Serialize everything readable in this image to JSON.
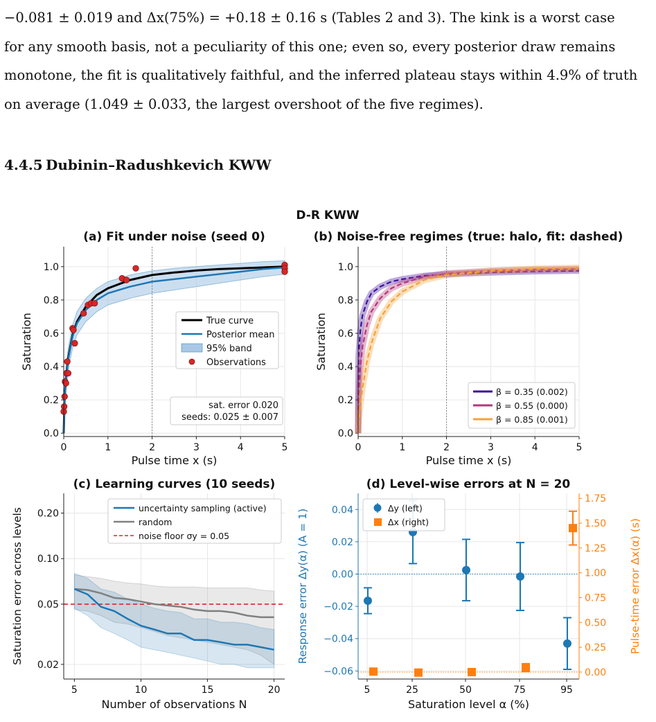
{
  "paragraph": {
    "lines": [
      "−0.081 ± 0.019 and Δx(75%) = +0.18 ± 0.16 s (Tables 2 and 3). The kink is a worst case",
      "for any smooth basis, not a peculiarity of this one; even so, every posterior draw remains",
      "monotone, the fit is qualitatively faithful, and the inferred plateau stays within 4.9% of truth",
      "on average (1.049 ± 0.033, the largest overshoot of the five regimes)."
    ]
  },
  "section": {
    "number": "4.4.5",
    "title": "Dubinin–Radushkevich KWW"
  },
  "figure": {
    "suptitle": "D-R KWW",
    "colors": {
      "true": "#000000",
      "posterior": "#1f77b4",
      "band": "#a9c8e6",
      "obs": "#d62728",
      "beta1": "#3f0f9c",
      "beta2": "#b5367a",
      "beta3": "#f5a23a",
      "active": "#1f77b4",
      "random": "#808080",
      "floor": "#d62728",
      "dy": "#1f77b4",
      "dx": "#ff7f0e"
    },
    "panel_a": {
      "title": "(a) Fit under noise (seed 0)",
      "xlabel": "Pulse time x (s)",
      "ylabel": "Saturation",
      "xticks": [
        "0",
        "1",
        "2",
        "3",
        "4",
        "5"
      ],
      "yticks": [
        "0.0",
        "0.2",
        "0.4",
        "0.6",
        "0.8",
        "1.0"
      ],
      "legend": [
        "True curve",
        "Posterior mean",
        "95% band",
        "Observations"
      ],
      "annotation": [
        "sat. error 0.020",
        "seeds: 0.025 ± 0.007"
      ]
    },
    "panel_b": {
      "title": "(b) Noise-free regimes (true: halo, fit: dashed)",
      "xlabel": "Pulse time x (s)",
      "ylabel": "Saturation",
      "xticks": [
        "0",
        "1",
        "2",
        "3",
        "4",
        "5"
      ],
      "yticks": [
        "0.0",
        "0.2",
        "0.4",
        "0.6",
        "0.8",
        "1.0"
      ],
      "legend": [
        "β = 0.35 (0.002)",
        "β = 0.55 (0.000)",
        "β = 0.85 (0.001)"
      ]
    },
    "panel_c": {
      "title": "(c) Learning curves (10 seeds)",
      "xlabel": "Number of observations N",
      "ylabel": "Saturation error across levels",
      "xticks": [
        "5",
        "10",
        "15",
        "20"
      ],
      "yticks": [
        "0.20",
        "0.10",
        "0.05",
        "0.02"
      ],
      "legend": [
        "uncertainty sampling (active)",
        "random",
        "noise floor σy = 0.05"
      ]
    },
    "panel_d": {
      "title": "(d) Level-wise errors at N = 20",
      "xlabel": "Saturation level α (%)",
      "ylabel_left": "Response error Δy(α)  (A = 1)",
      "ylabel_right": "Pulse-time error Δx(α)  (s)",
      "xticks": [
        "5",
        "25",
        "50",
        "75",
        "95"
      ],
      "yticks_left": [
        "0.04",
        "0.02",
        "0.00",
        "−0.02",
        "−0.04",
        "−0.06"
      ],
      "yticks_right": [
        "1.75",
        "1.50",
        "1.25",
        "1.00",
        "0.75",
        "0.50",
        "0.25",
        "0.00"
      ],
      "legend": [
        "Δy (left)",
        "Δx (right)"
      ]
    }
  },
  "chart_data": [
    {
      "type": "line",
      "title": "(a) Fit under noise (seed 0)",
      "xlabel": "Pulse time x (s)",
      "ylabel": "Saturation",
      "xlim": [
        0,
        5
      ],
      "ylim": [
        -0.02,
        1.12
      ],
      "series": [
        {
          "name": "True curve",
          "x": [
            0,
            0.02,
            0.05,
            0.1,
            0.2,
            0.3,
            0.5,
            0.75,
            1,
            1.5,
            2,
            2.5,
            3,
            3.5,
            4,
            4.5,
            5
          ],
          "y": [
            0,
            0.21,
            0.33,
            0.45,
            0.59,
            0.67,
            0.76,
            0.83,
            0.87,
            0.92,
            0.95,
            0.965,
            0.977,
            0.985,
            0.99,
            0.995,
            1.0
          ]
        },
        {
          "name": "Posterior mean",
          "x": [
            0,
            0.02,
            0.05,
            0.1,
            0.2,
            0.3,
            0.5,
            0.75,
            1,
            1.5,
            2,
            2.5,
            3,
            3.5,
            4,
            4.5,
            5
          ],
          "y": [
            0,
            0.2,
            0.32,
            0.44,
            0.58,
            0.66,
            0.74,
            0.8,
            0.84,
            0.88,
            0.91,
            0.925,
            0.94,
            0.955,
            0.97,
            0.985,
            0.995
          ]
        },
        {
          "name": "95% band",
          "x": [
            0,
            0.02,
            0.05,
            0.1,
            0.2,
            0.3,
            0.5,
            0.75,
            1,
            1.5,
            2,
            2.5,
            3,
            3.5,
            4,
            4.5,
            5
          ],
          "low": [
            0,
            0.14,
            0.26,
            0.38,
            0.51,
            0.59,
            0.67,
            0.73,
            0.77,
            0.81,
            0.84,
            0.86,
            0.88,
            0.9,
            0.92,
            0.94,
            0.955
          ],
          "high": [
            0.02,
            0.26,
            0.39,
            0.51,
            0.65,
            0.73,
            0.81,
            0.87,
            0.91,
            0.95,
            0.975,
            0.99,
            1.0,
            1.01,
            1.02,
            1.03,
            1.035
          ]
        },
        {
          "name": "Observations",
          "x": [
            0,
            0.01,
            0.02,
            0.03,
            0.05,
            0.06,
            0.08,
            0.1,
            0.2,
            0.22,
            0.25,
            0.45,
            0.55,
            0.62,
            0.7,
            1.32,
            1.42,
            1.63,
            5,
            5,
            5
          ],
          "y": [
            0.13,
            0.16,
            0.22,
            0.31,
            0.3,
            0.36,
            0.43,
            0.36,
            0.63,
            0.62,
            0.54,
            0.72,
            0.77,
            0.78,
            0.78,
            0.93,
            0.92,
            0.99,
            1.01,
            0.99,
            0.97
          ]
        }
      ],
      "vline": 2
    },
    {
      "type": "line",
      "title": "(b) Noise-free regimes (true: halo, fit: dashed)",
      "xlabel": "Pulse time x (s)",
      "ylabel": "Saturation",
      "xlim": [
        0,
        5
      ],
      "ylim": [
        -0.02,
        1.12
      ],
      "series": [
        {
          "name": "β = 0.35 (0.002)",
          "x": [
            0,
            0.01,
            0.05,
            0.1,
            0.2,
            0.3,
            0.5,
            0.75,
            1,
            1.5,
            2,
            3,
            4,
            5
          ],
          "y": [
            0,
            0.46,
            0.62,
            0.71,
            0.79,
            0.84,
            0.88,
            0.91,
            0.925,
            0.945,
            0.955,
            0.965,
            0.972,
            0.976
          ]
        },
        {
          "name": "β = 0.55 (0.000)",
          "x": [
            0,
            0.01,
            0.05,
            0.1,
            0.2,
            0.3,
            0.5,
            0.75,
            1,
            1.5,
            2,
            3,
            4,
            5
          ],
          "y": [
            0,
            0.22,
            0.4,
            0.52,
            0.65,
            0.73,
            0.81,
            0.87,
            0.9,
            0.94,
            0.96,
            0.975,
            0.982,
            0.986
          ]
        },
        {
          "name": "β = 0.85 (0.001)",
          "x": [
            0,
            0.01,
            0.05,
            0.1,
            0.2,
            0.3,
            0.5,
            0.75,
            1,
            1.5,
            2,
            3,
            4,
            5
          ],
          "y": [
            0,
            0.06,
            0.17,
            0.27,
            0.43,
            0.54,
            0.69,
            0.79,
            0.85,
            0.92,
            0.95,
            0.975,
            0.988,
            0.994
          ]
        }
      ],
      "vline": 2
    },
    {
      "type": "line",
      "title": "(c) Learning curves (10 seeds)",
      "xlabel": "Number of observations N",
      "ylabel": "Saturation error across levels",
      "xlim": [
        4.2,
        20.8
      ],
      "ylim": [
        0.016,
        0.27
      ],
      "yscale": "log",
      "series": [
        {
          "name": "uncertainty sampling (active)",
          "x": [
            5,
            6,
            7,
            8,
            9,
            10,
            11,
            12,
            13,
            14,
            15,
            16,
            17,
            18,
            19,
            20
          ],
          "y": [
            0.063,
            0.058,
            0.048,
            0.045,
            0.04,
            0.036,
            0.034,
            0.032,
            0.032,
            0.029,
            0.029,
            0.028,
            0.027,
            0.027,
            0.026,
            0.025
          ],
          "low": [
            0.047,
            0.042,
            0.035,
            0.032,
            0.029,
            0.026,
            0.025,
            0.024,
            0.023,
            0.022,
            0.021,
            0.02,
            0.02,
            0.019,
            0.019,
            0.019
          ],
          "high": [
            0.08,
            0.074,
            0.063,
            0.06,
            0.054,
            0.05,
            0.047,
            0.045,
            0.044,
            0.04,
            0.04,
            0.038,
            0.038,
            0.037,
            0.035,
            0.034
          ]
        },
        {
          "name": "random",
          "x": [
            5,
            6,
            7,
            8,
            9,
            10,
            11,
            12,
            13,
            14,
            15,
            16,
            17,
            18,
            19,
            20
          ],
          "y": [
            0.063,
            0.062,
            0.059,
            0.055,
            0.054,
            0.052,
            0.05,
            0.049,
            0.048,
            0.046,
            0.045,
            0.045,
            0.044,
            0.042,
            0.041,
            0.041
          ],
          "low": [
            0.046,
            0.045,
            0.042,
            0.038,
            0.037,
            0.035,
            0.033,
            0.031,
            0.03,
            0.029,
            0.028,
            0.027,
            0.026,
            0.025,
            0.023,
            0.02
          ],
          "high": [
            0.078,
            0.076,
            0.074,
            0.071,
            0.069,
            0.068,
            0.066,
            0.065,
            0.065,
            0.065,
            0.064,
            0.064,
            0.064,
            0.064,
            0.062,
            0.061
          ]
        }
      ],
      "hline": 0.05
    },
    {
      "type": "scatter",
      "title": "(d) Level-wise errors at N = 20",
      "xlabel": "Saturation level α (%)",
      "categories": [
        "5",
        "25",
        "50",
        "75",
        "95"
      ],
      "ylim_left": [
        -0.065,
        0.05
      ],
      "ylim_right": [
        -0.07,
        1.8
      ],
      "series": [
        {
          "name": "Δy (left)",
          "axis": "left",
          "y": [
            -0.0165,
            0.026,
            0.0025,
            -0.0015,
            -0.043
          ],
          "err": [
            0.008,
            0.0195,
            0.019,
            0.021,
            0.016
          ]
        },
        {
          "name": "Δx (right)",
          "axis": "right",
          "y": [
            0.005,
            -0.005,
            0.0,
            0.045,
            1.45
          ],
          "err": [
            0.0,
            0.0,
            0.0,
            0.04,
            0.17
          ]
        }
      ]
    }
  ]
}
